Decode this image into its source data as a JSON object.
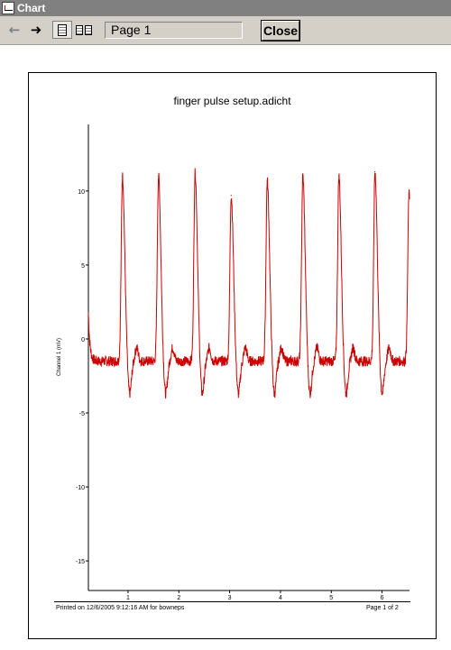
{
  "window": {
    "title": "Chart"
  },
  "toolbar": {
    "page_field_value": "Page 1",
    "close_label": "Close",
    "back_icon": "arrow-left-icon",
    "forward_icon": "arrow-right-icon",
    "single_page_icon": "single-page-view-icon",
    "two_page_icon": "two-page-view-icon"
  },
  "footer": {
    "printed": "Printed on 12/6/2005 9:12:16 AM for bowneps",
    "page": "Page 1 of 2"
  },
  "colors": {
    "trace": "#cc0000",
    "toolbar": "#d4d0c8",
    "titlebar": "#808080"
  },
  "chart_data": {
    "type": "line",
    "title": "finger pulse setup.adicht",
    "xlabel": "",
    "ylabel": "Channel 1 (mV)",
    "xlim": [
      0.22,
      6.54
    ],
    "ylim": [
      -17,
      14.5
    ],
    "x_ticks": [
      "1",
      "2",
      "3",
      "4",
      "5",
      "6"
    ],
    "y_ticks": [
      "10",
      "5",
      "0",
      "-5",
      "-10",
      "-15"
    ],
    "grid": false,
    "series": [
      {
        "name": "",
        "peaks": [
          {
            "x": 0.89,
            "y": 11.0
          },
          {
            "x": 1.6,
            "y": 11.0
          },
          {
            "x": 2.32,
            "y": 11.2
          },
          {
            "x": 3.03,
            "y": 9.7
          },
          {
            "x": 3.74,
            "y": 10.7
          },
          {
            "x": 4.44,
            "y": 11.0
          },
          {
            "x": 5.15,
            "y": 11.0
          },
          {
            "x": 5.86,
            "y": 11.3
          },
          {
            "x": 6.53,
            "y": 9.8
          }
        ],
        "baseline": -1.5,
        "trough": -3.4,
        "start_value": 1.8
      }
    ]
  }
}
